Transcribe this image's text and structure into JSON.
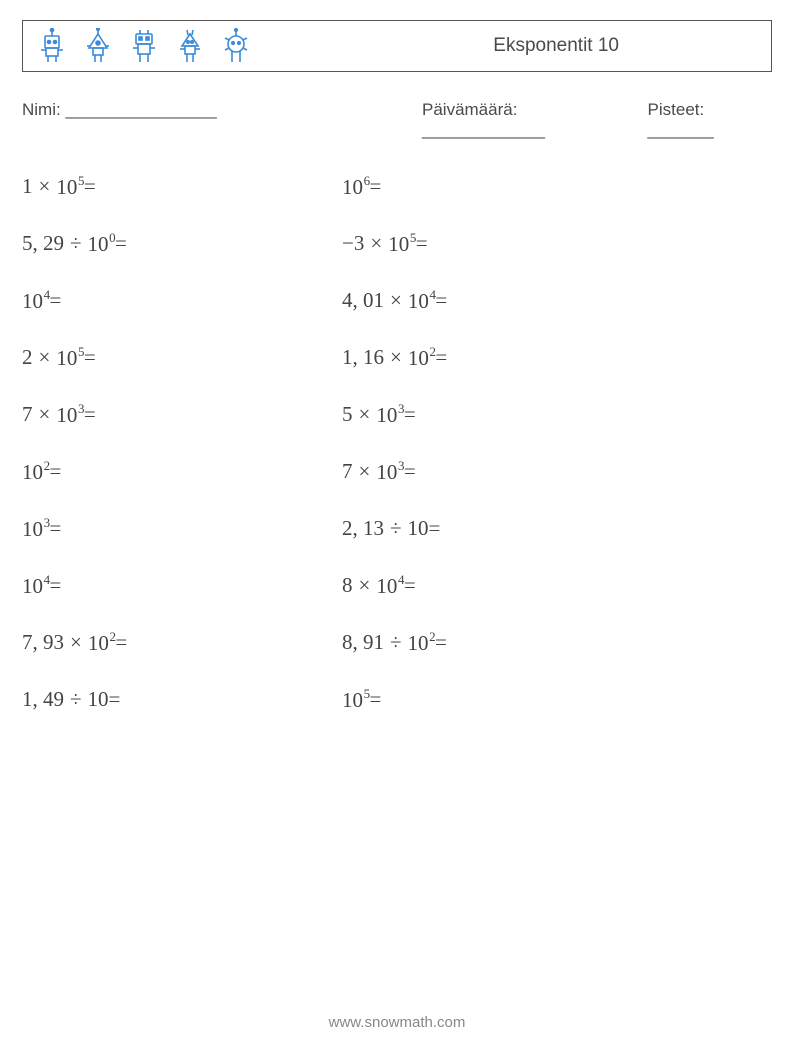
{
  "header": {
    "title": "Eksponentit 10",
    "icon_color": "#3a8bd8",
    "icon_count": 5
  },
  "info": {
    "name_label": "Nimi: ________________",
    "date_label": "Päivämäärä: _____________",
    "score_label": "Pisteet: _______"
  },
  "problems": {
    "left": [
      {
        "coef": "1",
        "op": "×",
        "base": "10",
        "exp": "5"
      },
      {
        "coef": "5, 29",
        "op": "÷",
        "base": "10",
        "exp": "0"
      },
      {
        "coef": "",
        "op": "",
        "base": "10",
        "exp": "4"
      },
      {
        "coef": "2",
        "op": "×",
        "base": "10",
        "exp": "5"
      },
      {
        "coef": "7",
        "op": "×",
        "base": "10",
        "exp": "3"
      },
      {
        "coef": "",
        "op": "",
        "base": "10",
        "exp": "2"
      },
      {
        "coef": "",
        "op": "",
        "base": "10",
        "exp": "3"
      },
      {
        "coef": "",
        "op": "",
        "base": "10",
        "exp": "4"
      },
      {
        "coef": "7, 93",
        "op": "×",
        "base": "10",
        "exp": "2"
      },
      {
        "coef": "1, 49",
        "op": "÷",
        "base": "10",
        "exp": ""
      }
    ],
    "right": [
      {
        "coef": "",
        "op": "",
        "base": "10",
        "exp": "6"
      },
      {
        "coef": "−3",
        "op": "×",
        "base": "10",
        "exp": "5"
      },
      {
        "coef": "4, 01",
        "op": "×",
        "base": "10",
        "exp": "4"
      },
      {
        "coef": "1, 16",
        "op": "×",
        "base": "10",
        "exp": "2"
      },
      {
        "coef": "5",
        "op": "×",
        "base": "10",
        "exp": "3"
      },
      {
        "coef": "7",
        "op": "×",
        "base": "10",
        "exp": "3"
      },
      {
        "coef": "2, 13",
        "op": "÷",
        "base": "10",
        "exp": ""
      },
      {
        "coef": "8",
        "op": "×",
        "base": "10",
        "exp": "4"
      },
      {
        "coef": "8, 91",
        "op": "÷",
        "base": "10",
        "exp": "2"
      },
      {
        "coef": "",
        "op": "",
        "base": "10",
        "exp": "5"
      }
    ],
    "suffix": " ="
  },
  "footer": {
    "text": "www.snowmath.com"
  },
  "colors": {
    "text": "#4a4a4a",
    "accent": "#3a8bd8"
  }
}
